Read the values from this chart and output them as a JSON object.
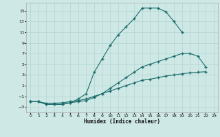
{
  "xlabel": "Humidex (Indice chaleur)",
  "bg_color": "#cde8e5",
  "grid_color": "#b8d8d5",
  "line_color": "#1a6b6b",
  "xlim": [
    -0.5,
    23.5
  ],
  "ylim": [
    -4,
    16.5
  ],
  "xticks": [
    0,
    1,
    2,
    3,
    4,
    5,
    6,
    7,
    8,
    9,
    10,
    11,
    12,
    13,
    14,
    15,
    16,
    17,
    18,
    19,
    20,
    21,
    22,
    23
  ],
  "yticks": [
    -3,
    -1,
    1,
    3,
    5,
    7,
    9,
    11,
    13,
    15
  ],
  "curve1_x": [
    0,
    1,
    2,
    3,
    4,
    5,
    6,
    7,
    8,
    9,
    10,
    11,
    12,
    13,
    14,
    15,
    16,
    17,
    18,
    19
  ],
  "curve1_y": [
    -2,
    -2,
    -2.5,
    -2.5,
    -2.5,
    -2.2,
    -1.5,
    -0.5,
    3.5,
    6,
    8.5,
    10.5,
    12,
    13.5,
    15.5,
    15.5,
    15.5,
    14.8,
    13,
    11
  ],
  "curve2_x": [
    0,
    1,
    2,
    3,
    4,
    5,
    6,
    7,
    8,
    9,
    10,
    11,
    12,
    13,
    14,
    15,
    16,
    17,
    18,
    19,
    20,
    21,
    22
  ],
  "curve2_y": [
    -2,
    -2,
    -2.5,
    -2.5,
    -2.5,
    -2.2,
    -2,
    -1.8,
    -1.2,
    -0.5,
    0.5,
    1.5,
    2.5,
    3.5,
    4.5,
    5.0,
    5.5,
    6.0,
    6.5,
    7.0,
    7.0,
    6.5,
    4.5
  ],
  "curve3_x": [
    0,
    1,
    2,
    3,
    4,
    5,
    6,
    7,
    8,
    9,
    10,
    11,
    12,
    13,
    14,
    15,
    16,
    17,
    18,
    19,
    20,
    21,
    22
  ],
  "curve3_y": [
    -2,
    -2,
    -2.3,
    -2.3,
    -2.2,
    -2.0,
    -1.8,
    -1.5,
    -1.0,
    -0.5,
    0.0,
    0.5,
    1.0,
    1.5,
    2.0,
    2.2,
    2.5,
    2.8,
    3.0,
    3.2,
    3.4,
    3.5,
    3.6
  ]
}
